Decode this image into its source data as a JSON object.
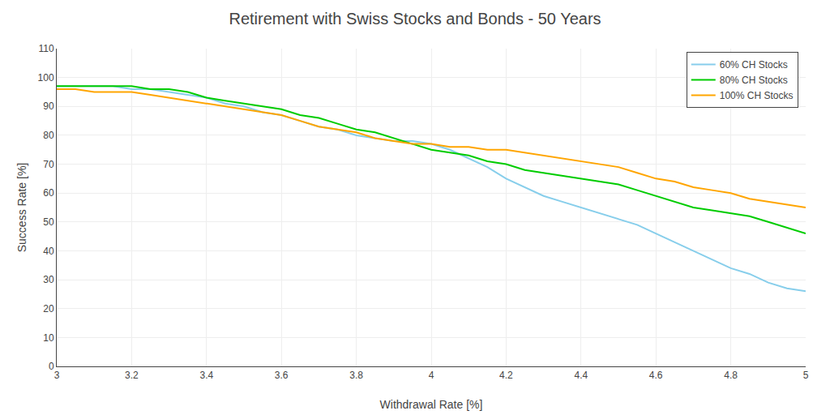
{
  "chart_data": {
    "type": "line",
    "title": "Retirement with Swiss Stocks and Bonds - 50 Years",
    "xlabel": "Withdrawal Rate [%]",
    "ylabel": "Success Rate [%]",
    "x": [
      3.0,
      3.05,
      3.1,
      3.15,
      3.2,
      3.25,
      3.3,
      3.35,
      3.4,
      3.45,
      3.5,
      3.55,
      3.6,
      3.65,
      3.7,
      3.75,
      3.8,
      3.85,
      3.9,
      3.95,
      4.0,
      4.05,
      4.1,
      4.15,
      4.2,
      4.25,
      4.3,
      4.35,
      4.4,
      4.45,
      4.5,
      4.55,
      4.6,
      4.65,
      4.7,
      4.75,
      4.8,
      4.85,
      4.9,
      4.95,
      5.0
    ],
    "series": [
      {
        "name": "60% CH Stocks",
        "color": "#87CEEB",
        "line_style": "solid",
        "values": [
          97,
          97,
          97,
          97,
          96,
          96,
          95,
          94,
          93,
          91,
          90,
          88,
          87,
          85,
          83,
          82,
          80,
          79,
          78,
          78,
          77,
          75,
          72,
          69,
          65,
          62,
          59,
          57,
          55,
          53,
          51,
          49,
          46,
          43,
          40,
          37,
          34,
          32,
          29,
          27,
          26
        ]
      },
      {
        "name": "80% CH Stocks",
        "color": "#00CC00",
        "line_style": "solid",
        "values": [
          97,
          97,
          97,
          97,
          97,
          96,
          96,
          95,
          93,
          92,
          91,
          90,
          89,
          87,
          86,
          84,
          82,
          81,
          79,
          77,
          75,
          74,
          73,
          71,
          70,
          68,
          67,
          66,
          65,
          64,
          63,
          61,
          59,
          57,
          55,
          54,
          53,
          52,
          50,
          48,
          46
        ]
      },
      {
        "name": "100% CH Stocks",
        "color": "#FFA500",
        "line_style": "solid",
        "values": [
          96,
          96,
          95,
          95,
          95,
          94,
          93,
          92,
          91,
          90,
          89,
          88,
          87,
          85,
          83,
          82,
          81,
          79,
          78,
          77,
          77,
          76,
          76,
          75,
          75,
          74,
          73,
          72,
          71,
          70,
          69,
          67,
          65,
          64,
          62,
          61,
          60,
          58,
          57,
          56,
          55
        ]
      }
    ],
    "xlim": [
      3.0,
      5.0
    ],
    "xticks": [
      3,
      3.2,
      3.4,
      3.6,
      3.8,
      4,
      4.2,
      4.4,
      4.6,
      4.8,
      5
    ],
    "ylim": [
      0,
      110
    ],
    "yticks": [
      0,
      10,
      20,
      30,
      40,
      50,
      60,
      70,
      80,
      90,
      100,
      110
    ],
    "grid": true,
    "legend": "upper right"
  }
}
